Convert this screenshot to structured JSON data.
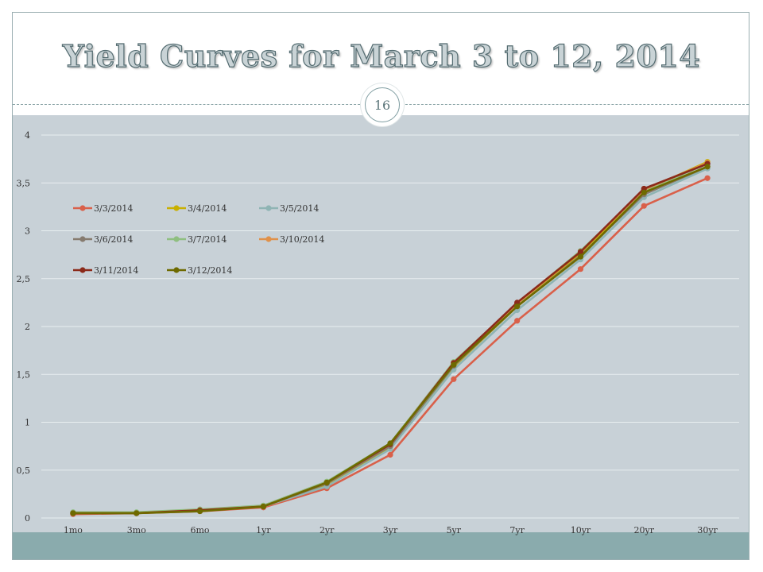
{
  "slide": {
    "title": "Yield Curves for March 3 to 12, 2014",
    "page_number": "16"
  },
  "chart_data": {
    "type": "line",
    "title": "",
    "xlabel": "",
    "ylabel": "",
    "categories": [
      "1mo",
      "3mo",
      "6mo",
      "1yr",
      "2yr",
      "3yr",
      "5yr",
      "7yr",
      "10yr",
      "20yr",
      "30yr"
    ],
    "ylim": [
      0,
      4
    ],
    "yticks": [
      "0",
      "0,5",
      "1",
      "1,5",
      "2",
      "2,5",
      "3",
      "3,5",
      "4"
    ],
    "grid": true,
    "legend_position": "top-left",
    "series": [
      {
        "name": "3/3/2014",
        "color": "#d9604a",
        "values": [
          0.04,
          0.05,
          0.07,
          0.11,
          0.31,
          0.66,
          1.45,
          2.06,
          2.6,
          3.26,
          3.55
        ]
      },
      {
        "name": "3/4/2014",
        "color": "#c9b000",
        "values": [
          0.05,
          0.05,
          0.08,
          0.12,
          0.34,
          0.73,
          1.58,
          2.21,
          2.76,
          3.42,
          3.72
        ]
      },
      {
        "name": "3/5/2014",
        "color": "#8fb4b4",
        "values": [
          0.05,
          0.05,
          0.08,
          0.12,
          0.33,
          0.72,
          1.55,
          2.17,
          2.7,
          3.35,
          3.65
        ]
      },
      {
        "name": "3/6/2014",
        "color": "#867b6f",
        "values": [
          0.05,
          0.05,
          0.08,
          0.12,
          0.36,
          0.75,
          1.59,
          2.21,
          2.74,
          3.38,
          3.67
        ]
      },
      {
        "name": "3/7/2014",
        "color": "#8fbf80",
        "values": [
          0.06,
          0.06,
          0.09,
          0.13,
          0.38,
          0.78,
          1.63,
          2.24,
          2.79,
          3.42,
          3.7
        ]
      },
      {
        "name": "3/10/2014",
        "color": "#e0914a",
        "values": [
          0.05,
          0.05,
          0.08,
          0.12,
          0.37,
          0.77,
          1.62,
          2.24,
          2.78,
          3.43,
          3.71
        ]
      },
      {
        "name": "3/11/2014",
        "color": "#8b2a1a",
        "values": [
          0.05,
          0.05,
          0.08,
          0.12,
          0.37,
          0.77,
          1.62,
          2.25,
          2.78,
          3.44,
          3.7
        ]
      },
      {
        "name": "3/12/2014",
        "color": "#6e6a00",
        "values": [
          0.05,
          0.05,
          0.07,
          0.12,
          0.37,
          0.78,
          1.6,
          2.21,
          2.73,
          3.4,
          3.67
        ]
      }
    ]
  }
}
